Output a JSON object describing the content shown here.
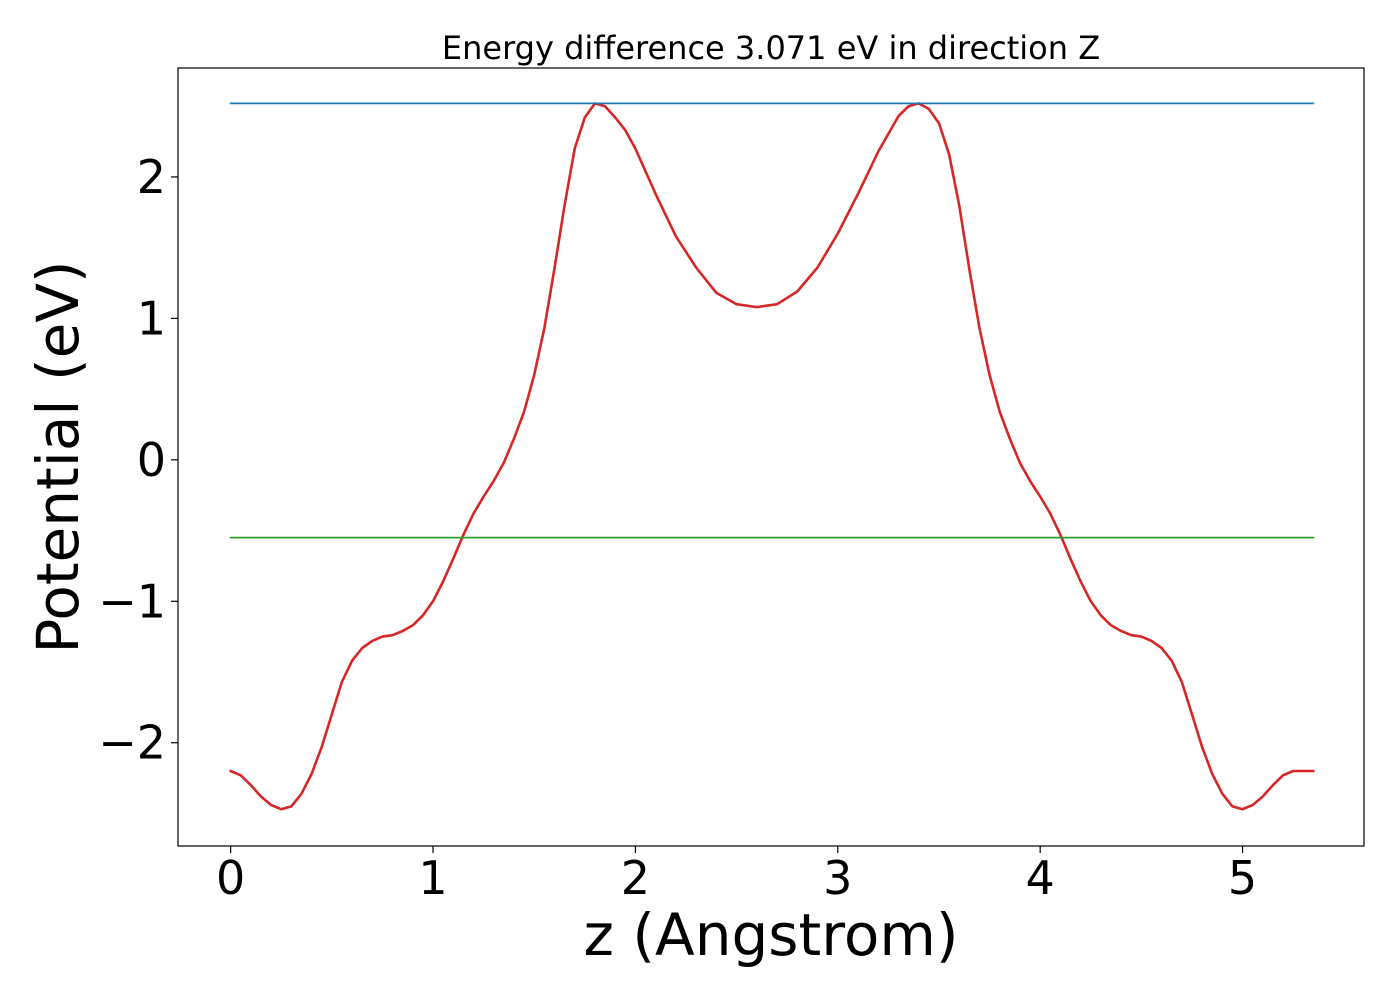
{
  "chart_data": {
    "type": "line",
    "title": "Energy difference 3.071 eV in direction Z",
    "xlabel": "z (Angstrom)",
    "ylabel": "Potential (eV)",
    "xlim": [
      -0.26,
      5.6
    ],
    "ylim": [
      -2.73,
      2.77
    ],
    "grid": false,
    "x_ticks": [
      0,
      1,
      2,
      3,
      4,
      5
    ],
    "x_tick_labels": [
      "0",
      "1",
      "2",
      "3",
      "4",
      "5"
    ],
    "y_ticks": [
      -2,
      -1,
      0,
      1,
      2
    ],
    "y_tick_labels": [
      "−2",
      "−1",
      "0",
      "1",
      "2"
    ],
    "series": [
      {
        "color": "#d62728",
        "x": [
          0.0,
          0.05,
          0.1,
          0.15,
          0.2,
          0.25,
          0.3,
          0.35,
          0.4,
          0.45,
          0.5,
          0.55,
          0.6,
          0.65,
          0.7,
          0.75,
          0.8,
          0.85,
          0.9,
          0.95,
          1.0,
          1.05,
          1.1,
          1.15,
          1.2,
          1.25,
          1.3,
          1.35,
          1.4,
          1.45,
          1.5,
          1.55,
          1.6,
          1.65,
          1.7,
          1.75,
          1.8,
          1.85,
          1.9,
          1.95,
          2.0,
          2.1,
          2.2,
          2.3,
          2.4,
          2.5,
          2.6,
          2.7,
          2.8,
          2.9,
          3.0,
          3.1,
          3.2,
          3.3,
          3.35,
          3.4,
          3.45,
          3.5,
          3.55,
          3.6,
          3.65,
          3.7,
          3.75,
          3.8,
          3.85,
          3.9,
          3.95,
          4.0,
          4.05,
          4.1,
          4.15,
          4.2,
          4.25,
          4.3,
          4.35,
          4.4,
          4.45,
          4.5,
          4.55,
          4.6,
          4.65,
          4.7,
          4.75,
          4.8,
          4.85,
          4.9,
          4.95,
          5.0,
          5.05,
          5.1,
          5.15,
          5.2,
          5.25,
          5.3,
          5.35
        ],
        "y": [
          -2.2,
          -2.23,
          -2.3,
          -2.38,
          -2.44,
          -2.47,
          -2.45,
          -2.36,
          -2.22,
          -2.03,
          -1.8,
          -1.57,
          -1.42,
          -1.33,
          -1.28,
          -1.25,
          -1.24,
          -1.21,
          -1.17,
          -1.1,
          -1.0,
          -0.86,
          -0.7,
          -0.53,
          -0.38,
          -0.26,
          -0.15,
          -0.02,
          0.15,
          0.34,
          0.6,
          0.93,
          1.35,
          1.8,
          2.2,
          2.42,
          2.52,
          2.5,
          2.42,
          2.33,
          2.2,
          1.88,
          1.58,
          1.36,
          1.18,
          1.1,
          1.08,
          1.1,
          1.19,
          1.36,
          1.6,
          1.88,
          2.18,
          2.43,
          2.5,
          2.52,
          2.48,
          2.38,
          2.16,
          1.8,
          1.35,
          0.93,
          0.6,
          0.34,
          0.15,
          -0.02,
          -0.15,
          -0.26,
          -0.38,
          -0.53,
          -0.7,
          -0.86,
          -1.0,
          -1.1,
          -1.17,
          -1.21,
          -1.24,
          -1.25,
          -1.28,
          -1.33,
          -1.42,
          -1.57,
          -1.8,
          -2.03,
          -2.22,
          -2.36,
          -2.45,
          -2.47,
          -2.44,
          -2.38,
          -2.3,
          -2.23,
          -2.2,
          -2.2,
          -2.2
        ]
      },
      {
        "color": "#1f77b4",
        "x": [
          0.0,
          5.35
        ],
        "y": [
          2.52,
          2.52
        ]
      },
      {
        "color": "#2ca02c",
        "x": [
          0.0,
          5.35
        ],
        "y": [
          -0.55,
          -0.55
        ]
      }
    ]
  }
}
